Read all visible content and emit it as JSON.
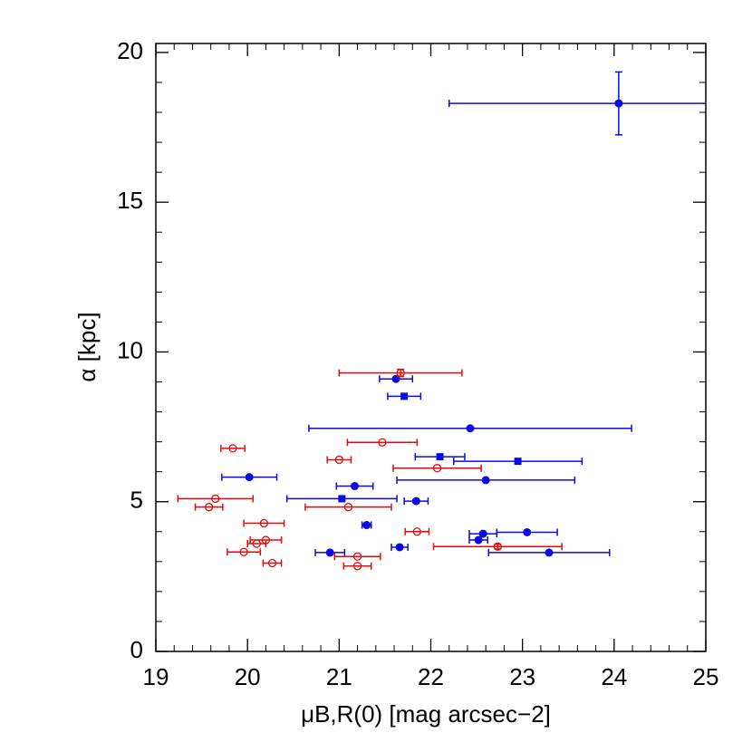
{
  "chart_data": {
    "type": "scatter",
    "x_label": "μB,R(0) [mag arcsec−2]",
    "y_label": "α [kpc]",
    "xlim": [
      19,
      25
    ],
    "xticks": [
      19,
      20,
      21,
      22,
      23,
      24,
      25
    ],
    "ylim": [
      0,
      20.3
    ],
    "yticks": [
      0,
      5,
      10,
      15,
      20
    ],
    "series": [
      {
        "marker": "circle",
        "color": "#0a0ae6",
        "x": [
          24.05,
          21.62,
          22.43,
          20.02,
          21.17,
          22.6,
          21.84,
          21.3,
          22.57,
          23.05,
          22.52,
          21.66,
          20.9,
          23.29
        ],
        "values": [
          18.3,
          9.1,
          7.45,
          5.82,
          5.52,
          5.72,
          5.02,
          4.22,
          3.93,
          3.98,
          3.72,
          3.48,
          3.3,
          3.3
        ],
        "xerr": [
          1.85,
          0.18,
          1.76,
          0.3,
          0.2,
          0.97,
          0.13,
          0.05,
          0.15,
          0.33,
          0.1,
          0.09,
          0.16,
          0.66
        ],
        "yerr": [
          1.05,
          null,
          null,
          null,
          null,
          null,
          null,
          null,
          null,
          null,
          null,
          null,
          null,
          null
        ]
      },
      {
        "marker": "square",
        "color": "#0a0ae6",
        "x": [
          21.71,
          22.1,
          22.95,
          21.03
        ],
        "values": [
          8.52,
          6.5,
          6.35,
          5.1
        ],
        "xerr": [
          0.18,
          0.27,
          0.7,
          0.6
        ],
        "yerr": [
          null,
          null,
          null,
          null
        ]
      },
      {
        "marker": "open-circle",
        "color": "#e60a0a",
        "x": [
          21.67,
          19.84,
          21.47,
          21.0,
          22.07,
          19.65,
          19.58,
          21.1,
          20.18,
          21.85,
          20.2,
          20.1,
          19.96,
          22.73,
          21.2,
          20.27,
          21.2
        ],
        "values": [
          9.3,
          6.78,
          6.98,
          6.4,
          6.12,
          5.1,
          4.82,
          4.82,
          4.28,
          4.0,
          3.72,
          3.6,
          3.32,
          3.5,
          3.17,
          2.95,
          2.85
        ],
        "xerr": [
          0.67,
          0.13,
          0.38,
          0.13,
          0.48,
          0.41,
          0.15,
          0.47,
          0.22,
          0.13,
          0.17,
          0.1,
          0.18,
          0.7,
          0.25,
          0.1,
          0.15
        ],
        "yerr": [
          0.12,
          null,
          null,
          null,
          null,
          null,
          null,
          null,
          null,
          null,
          null,
          null,
          null,
          0.08,
          null,
          null,
          null
        ]
      }
    ]
  }
}
